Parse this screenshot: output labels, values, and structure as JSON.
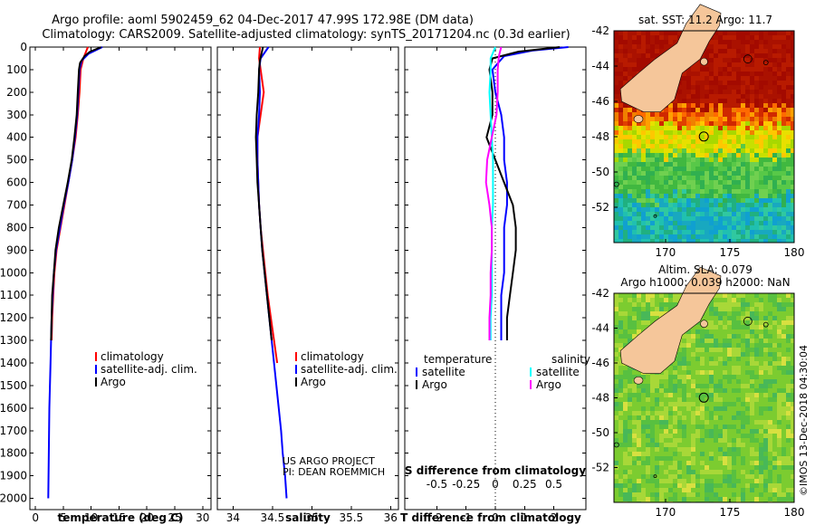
{
  "title": {
    "line1": "Argo profile: aoml 5902459_62 04-Dec-2017 47.99S 172.98E (DM data)",
    "line2": "Climatology: CARS2009. Satellite-adjusted climatology: synTS_20171204.nc (0.3d earlier)"
  },
  "credit": {
    "line1": "US ARGO PROJECT",
    "line2": "PI: DEAN ROEMMICH"
  },
  "imos_stamp": "©IMOS 13-Dec-2018 04:30:04",
  "colors": {
    "climatology": "#ff0000",
    "satellite": "#0000ff",
    "argo": "#000000",
    "sat_salinity": "#00ffff",
    "argo_salinity": "#ff00ff",
    "land": "#f5c69a"
  },
  "chart_data": [
    {
      "type": "line",
      "name": "temperature-profile",
      "xlabel": "temperature (deg C)",
      "xlim": [
        -1,
        31.5
      ],
      "xticks": [
        0,
        5,
        10,
        15,
        20,
        25,
        30
      ],
      "ylim": [
        0,
        2050
      ],
      "yticks": [
        0,
        100,
        200,
        300,
        400,
        500,
        600,
        700,
        800,
        900,
        1000,
        1100,
        1200,
        1300,
        1400,
        1500,
        1600,
        1700,
        1800,
        1900,
        2000
      ],
      "legend": [
        "climatology",
        "satellite-adj. clim.",
        "Argo"
      ],
      "series": [
        {
          "name": "climatology",
          "color": "#ff0000",
          "depth": [
            0,
            50,
            100,
            200,
            300,
            400,
            500,
            600,
            700,
            800,
            900,
            1000,
            1100,
            1200,
            1300
          ],
          "values": [
            9.4,
            8.6,
            8.1,
            7.9,
            7.6,
            7.2,
            6.6,
            5.9,
            5.2,
            4.5,
            3.8,
            3.4,
            3.2,
            3.0,
            2.9
          ]
        },
        {
          "name": "satellite-adj. clim.",
          "color": "#0000ff",
          "depth": [
            0,
            30,
            60,
            100,
            200,
            300,
            400,
            500,
            600,
            700,
            800,
            900,
            1000,
            1100,
            1200,
            1300,
            1400,
            1600,
            1800,
            2000
          ],
          "values": [
            12.0,
            9.5,
            8.3,
            7.9,
            7.7,
            7.5,
            7.1,
            6.6,
            5.9,
            5.1,
            4.4,
            3.7,
            3.3,
            3.1,
            2.9,
            2.8,
            2.7,
            2.5,
            2.4,
            2.3
          ]
        },
        {
          "name": "Argo",
          "color": "#000000",
          "depth": [
            0,
            20,
            40,
            70,
            100,
            200,
            300,
            400,
            500,
            600,
            700,
            800,
            900,
            1000,
            1100,
            1200,
            1300
          ],
          "values": [
            11.8,
            9.8,
            8.8,
            8.0,
            7.8,
            7.6,
            7.4,
            7.0,
            6.5,
            5.8,
            5.0,
            4.2,
            3.6,
            3.3,
            3.0,
            2.9,
            2.8
          ]
        }
      ]
    },
    {
      "type": "line",
      "name": "salinity-profile",
      "xlabel": "salinity",
      "xlim": [
        33.8,
        36.1
      ],
      "xticks": [
        34,
        34.5,
        35,
        35.5,
        36
      ],
      "ylim": [
        0,
        2050
      ],
      "legend": [
        "climatology",
        "satellite-adj. clim.",
        "Argo"
      ],
      "series": [
        {
          "name": "climatology",
          "color": "#ff0000",
          "depth": [
            0,
            50,
            100,
            200,
            300,
            400,
            500,
            600,
            700,
            800,
            900,
            1000,
            1100,
            1200,
            1300,
            1400
          ],
          "values": [
            34.34,
            34.33,
            34.35,
            34.39,
            34.35,
            34.31,
            34.31,
            34.32,
            34.33,
            34.35,
            34.38,
            34.41,
            34.44,
            34.48,
            34.52,
            34.56
          ]
        },
        {
          "name": "satellite-adj. clim.",
          "color": "#0000ff",
          "depth": [
            0,
            50,
            100,
            200,
            300,
            400,
            500,
            600,
            700,
            800,
            900,
            1000,
            1100,
            1200,
            1300,
            1400,
            1500,
            1600,
            1700,
            1800,
            1900,
            2000
          ],
          "values": [
            34.45,
            34.35,
            34.33,
            34.34,
            34.33,
            34.31,
            34.31,
            34.32,
            34.33,
            34.35,
            34.37,
            34.4,
            34.43,
            34.46,
            34.49,
            34.52,
            34.55,
            34.58,
            34.61,
            34.63,
            34.66,
            34.68
          ]
        },
        {
          "name": "Argo",
          "color": "#000000",
          "depth": [
            0,
            30,
            60,
            100,
            200,
            300,
            400,
            500,
            600,
            700,
            800,
            900,
            1000,
            1100,
            1200,
            1300
          ],
          "values": [
            34.38,
            34.36,
            34.34,
            34.33,
            34.32,
            34.3,
            34.29,
            34.3,
            34.31,
            34.33,
            34.35,
            34.37,
            34.4,
            34.43,
            34.46,
            34.49
          ]
        }
      ]
    },
    {
      "type": "line",
      "name": "difference-profile",
      "xlabel": "T difference from climatology",
      "xlabel2": "S difference from climatology",
      "xlim": [
        -3.1,
        3.1
      ],
      "xticks": [
        -2,
        -1,
        0,
        1,
        2
      ],
      "xticks2": [
        "-0.5",
        "-0.25",
        "0",
        "0.25",
        "0.5"
      ],
      "ylim": [
        0,
        2050
      ],
      "legend": {
        "temperature_header": "temperature",
        "salinity_header": "salinity",
        "temperature": [
          "satellite",
          "Argo"
        ],
        "salinity": [
          "satellite",
          "Argo"
        ]
      },
      "series": [
        {
          "name": "temperature satellite",
          "color": "#0000ff",
          "depth": [
            0,
            15,
            40,
            70,
            100,
            200,
            300,
            400,
            500,
            600,
            700,
            800,
            900,
            1000,
            1100,
            1200,
            1300
          ],
          "values": [
            2.5,
            1.3,
            0.3,
            0.1,
            -0.1,
            0.0,
            0.2,
            0.3,
            0.3,
            0.4,
            0.4,
            0.3,
            0.3,
            0.3,
            0.2,
            0.2,
            0.2
          ]
        },
        {
          "name": "temperature Argo",
          "color": "#000000",
          "depth": [
            0,
            20,
            50,
            100,
            200,
            300,
            400,
            500,
            600,
            700,
            800,
            900,
            1000,
            1100,
            1200,
            1300
          ],
          "values": [
            2.2,
            0.8,
            -0.1,
            -0.2,
            -0.1,
            -0.1,
            -0.3,
            0.0,
            0.3,
            0.6,
            0.7,
            0.7,
            0.6,
            0.5,
            0.4,
            0.4
          ]
        },
        {
          "name": "salinity satellite",
          "color": "#00ffff",
          "depth": [
            0,
            50,
            100,
            200,
            300,
            400,
            500,
            600,
            700,
            800,
            900,
            1000,
            1100,
            1200,
            1300
          ],
          "values": [
            0.0,
            -0.04,
            -0.04,
            -0.05,
            -0.04,
            -0.03,
            -0.02,
            -0.02,
            -0.02,
            -0.03,
            -0.03,
            -0.03,
            -0.03,
            -0.04,
            -0.04
          ]
        },
        {
          "name": "salinity Argo",
          "color": "#ff00ff",
          "depth": [
            0,
            40,
            100,
            200,
            300,
            400,
            500,
            600,
            700,
            800,
            900,
            1000,
            1100,
            1200,
            1300
          ],
          "values": [
            0.05,
            0.03,
            0.02,
            0.02,
            0.01,
            -0.03,
            -0.07,
            -0.08,
            -0.05,
            -0.03,
            -0.03,
            -0.04,
            -0.04,
            -0.05,
            -0.05
          ]
        }
      ]
    },
    {
      "type": "heatmap",
      "name": "sst-map",
      "title": "sat. SST: 11.2 Argo: 11.7",
      "xlim": [
        166,
        180
      ],
      "ylim": [
        -54,
        -42
      ],
      "xticks": [
        170,
        175,
        180
      ],
      "yticks": [
        -42,
        -44,
        -46,
        -48,
        -50,
        -52
      ],
      "argo_position": {
        "lon": 172.98,
        "lat": -47.99
      }
    },
    {
      "type": "heatmap",
      "name": "sla-map",
      "title_line1": "Altim. SLA: 0.079",
      "title_line2": "Argo h1000: 0.039 h2000: NaN",
      "xlim": [
        166,
        180
      ],
      "ylim": [
        -54,
        -42
      ],
      "xticks": [
        170,
        175,
        180
      ],
      "yticks": [
        -42,
        -44,
        -46,
        -48,
        -50,
        -52
      ],
      "argo_position": {
        "lon": 172.98,
        "lat": -47.99
      }
    }
  ]
}
